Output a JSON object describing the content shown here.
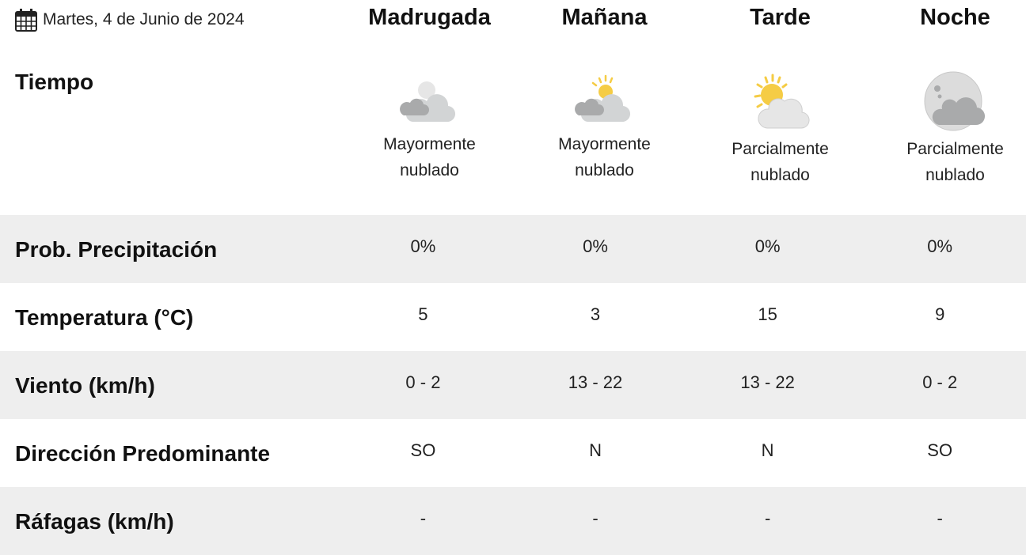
{
  "date": {
    "icon": "calendar-icon",
    "text": "Martes, 4 de Junio de 2024"
  },
  "periods": [
    {
      "name": "Madrugada",
      "icon": "cloudy-night-icon",
      "desc1": "Mayormente",
      "desc2": "nublado"
    },
    {
      "name": "Mañana",
      "icon": "cloudy-day-icon",
      "desc1": "Mayormente",
      "desc2": "nublado"
    },
    {
      "name": "Tarde",
      "icon": "partly-cloudy-day-icon",
      "desc1": "Parcialmente",
      "desc2": "nublado"
    },
    {
      "name": "Noche",
      "icon": "partly-cloudy-night-icon",
      "desc1": "Parcialmente",
      "desc2": "nublado"
    }
  ],
  "tiempo_label": "Tiempo",
  "rows": [
    {
      "label": "Prob. Precipitación",
      "values": [
        "0%",
        "0%",
        "0%",
        "0%"
      ]
    },
    {
      "label": "Temperatura (°C)",
      "values": [
        "5",
        "3",
        "15",
        "9"
      ]
    },
    {
      "label": "Viento (km/h)",
      "values": [
        "0 - 2",
        "13 - 22",
        "13 - 22",
        "0 - 2"
      ]
    },
    {
      "label": "Dirección Predominante",
      "values": [
        "SO",
        "N",
        "N",
        "SO"
      ]
    },
    {
      "label": "Ráfagas (km/h)",
      "values": [
        "-",
        "-",
        "-",
        "-"
      ]
    }
  ],
  "colors": {
    "row_alt": "#eeeeee",
    "sun": "#f5cc45",
    "cloud_light": "#d2d4d5",
    "cloud_dark": "#a9aaab"
  }
}
